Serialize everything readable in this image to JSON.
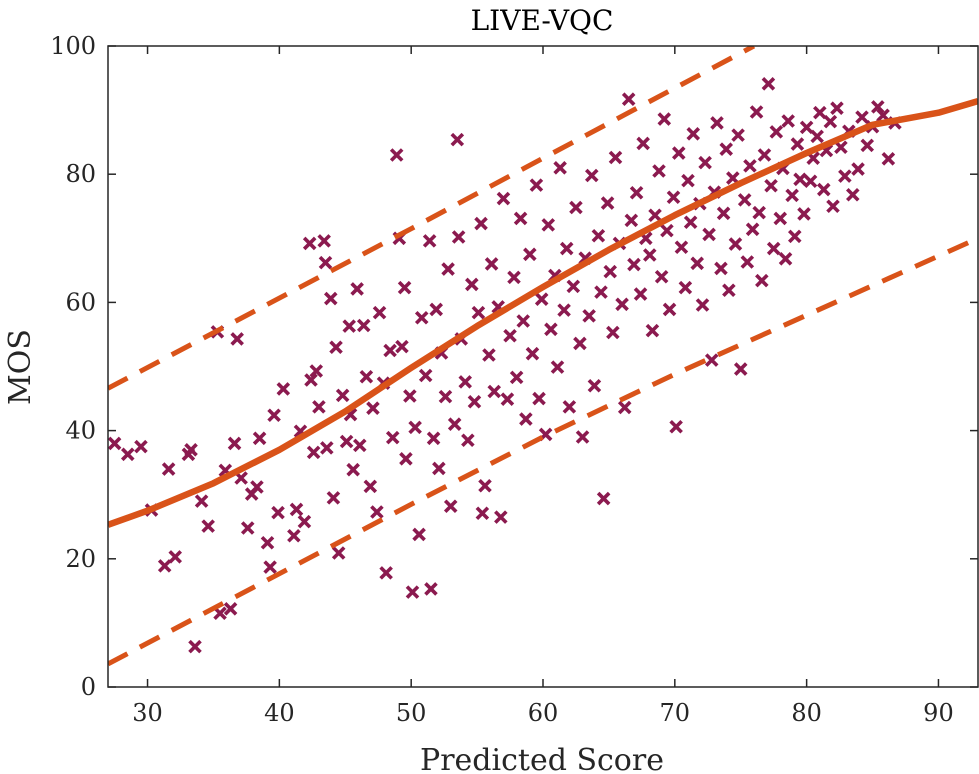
{
  "chart_data": {
    "type": "scatter",
    "title": "LIVE-VQC",
    "xlabel": "Predicted Score",
    "ylabel": "MOS",
    "xlim": [
      27,
      93
    ],
    "ylim": [
      0,
      100
    ],
    "xticks": [
      30,
      40,
      50,
      60,
      70,
      80,
      90
    ],
    "yticks": [
      0,
      20,
      40,
      60,
      80,
      100
    ],
    "grid": false,
    "colors": {
      "points": "#8b1a4f",
      "fit": "#d95319"
    },
    "marker": "x",
    "points": [
      [
        27.5,
        38.0
      ],
      [
        28.5,
        36.3
      ],
      [
        29.5,
        37.5
      ],
      [
        30.3,
        27.6
      ],
      [
        31.3,
        18.9
      ],
      [
        31.6,
        34.0
      ],
      [
        32.1,
        20.3
      ],
      [
        33.1,
        36.3
      ],
      [
        33.3,
        37.0
      ],
      [
        33.6,
        6.3
      ],
      [
        34.1,
        29.0
      ],
      [
        34.6,
        25.1
      ],
      [
        35.3,
        55.4
      ],
      [
        35.5,
        11.5
      ],
      [
        35.9,
        33.8
      ],
      [
        36.3,
        12.2
      ],
      [
        36.6,
        38.0
      ],
      [
        36.8,
        54.3
      ],
      [
        37.1,
        32.6
      ],
      [
        37.6,
        24.8
      ],
      [
        37.9,
        30.1
      ],
      [
        38.3,
        31.2
      ],
      [
        38.5,
        38.8
      ],
      [
        39.1,
        22.5
      ],
      [
        39.3,
        18.7
      ],
      [
        39.6,
        42.4
      ],
      [
        39.9,
        27.2
      ],
      [
        40.3,
        46.5
      ],
      [
        41.1,
        23.6
      ],
      [
        41.3,
        27.7
      ],
      [
        41.6,
        39.9
      ],
      [
        41.9,
        25.8
      ],
      [
        42.3,
        69.2
      ],
      [
        42.4,
        47.9
      ],
      [
        42.6,
        36.6
      ],
      [
        42.8,
        49.3
      ],
      [
        43.0,
        43.7
      ],
      [
        43.4,
        69.6
      ],
      [
        43.5,
        66.2
      ],
      [
        43.6,
        37.3
      ],
      [
        43.9,
        60.6
      ],
      [
        44.1,
        29.5
      ],
      [
        44.3,
        53.0
      ],
      [
        44.5,
        20.9
      ],
      [
        44.8,
        45.5
      ],
      [
        45.1,
        38.3
      ],
      [
        45.3,
        56.3
      ],
      [
        45.4,
        42.5
      ],
      [
        45.6,
        33.9
      ],
      [
        45.9,
        62.1
      ],
      [
        46.1,
        37.7
      ],
      [
        46.4,
        56.4
      ],
      [
        46.6,
        48.4
      ],
      [
        46.9,
        31.3
      ],
      [
        47.1,
        43.5
      ],
      [
        47.4,
        27.3
      ],
      [
        47.6,
        58.4
      ],
      [
        47.9,
        47.4
      ],
      [
        48.1,
        17.8
      ],
      [
        48.4,
        52.5
      ],
      [
        48.6,
        38.9
      ],
      [
        48.9,
        83.0
      ],
      [
        49.1,
        70.0
      ],
      [
        49.3,
        53.1
      ],
      [
        49.5,
        62.3
      ],
      [
        49.6,
        35.6
      ],
      [
        49.9,
        45.4
      ],
      [
        50.1,
        14.8
      ],
      [
        50.3,
        40.5
      ],
      [
        50.6,
        23.8
      ],
      [
        50.8,
        57.6
      ],
      [
        51.1,
        48.6
      ],
      [
        51.4,
        69.6
      ],
      [
        51.5,
        15.3
      ],
      [
        51.7,
        38.8
      ],
      [
        51.9,
        58.9
      ],
      [
        52.1,
        34.1
      ],
      [
        52.3,
        52.1
      ],
      [
        52.6,
        45.3
      ],
      [
        52.8,
        65.2
      ],
      [
        53.0,
        28.2
      ],
      [
        53.3,
        41.0
      ],
      [
        53.5,
        85.4
      ],
      [
        53.6,
        70.2
      ],
      [
        53.8,
        54.3
      ],
      [
        54.1,
        47.6
      ],
      [
        54.3,
        38.5
      ],
      [
        54.6,
        62.8
      ],
      [
        54.8,
        44.5
      ],
      [
        55.1,
        58.4
      ],
      [
        55.3,
        72.3
      ],
      [
        55.4,
        27.1
      ],
      [
        55.6,
        31.4
      ],
      [
        55.9,
        51.8
      ],
      [
        56.1,
        66.0
      ],
      [
        56.3,
        46.1
      ],
      [
        56.6,
        59.3
      ],
      [
        56.8,
        26.5
      ],
      [
        57.0,
        76.2
      ],
      [
        57.3,
        44.9
      ],
      [
        57.5,
        54.8
      ],
      [
        57.8,
        63.9
      ],
      [
        58.0,
        48.3
      ],
      [
        58.3,
        73.1
      ],
      [
        58.5,
        57.1
      ],
      [
        58.7,
        41.8
      ],
      [
        59.0,
        67.5
      ],
      [
        59.2,
        52.0
      ],
      [
        59.5,
        78.3
      ],
      [
        59.7,
        45.0
      ],
      [
        59.9,
        60.5
      ],
      [
        60.2,
        39.4
      ],
      [
        60.4,
        72.1
      ],
      [
        60.6,
        55.8
      ],
      [
        60.9,
        64.2
      ],
      [
        61.1,
        49.9
      ],
      [
        61.3,
        81.0
      ],
      [
        61.6,
        58.8
      ],
      [
        61.8,
        68.4
      ],
      [
        62.0,
        43.7
      ],
      [
        62.3,
        62.5
      ],
      [
        62.5,
        74.8
      ],
      [
        62.8,
        53.6
      ],
      [
        63.0,
        39.0
      ],
      [
        63.2,
        66.9
      ],
      [
        63.5,
        57.9
      ],
      [
        63.7,
        79.8
      ],
      [
        63.9,
        47.0
      ],
      [
        64.2,
        70.4
      ],
      [
        64.4,
        61.6
      ],
      [
        64.6,
        29.4
      ],
      [
        64.9,
        75.5
      ],
      [
        65.1,
        64.8
      ],
      [
        65.3,
        55.3
      ],
      [
        65.5,
        82.6
      ],
      [
        65.8,
        69.2
      ],
      [
        66.0,
        59.7
      ],
      [
        66.2,
        43.6
      ],
      [
        66.5,
        91.7
      ],
      [
        66.7,
        72.8
      ],
      [
        66.9,
        65.9
      ],
      [
        67.1,
        77.1
      ],
      [
        67.4,
        61.3
      ],
      [
        67.6,
        84.8
      ],
      [
        67.8,
        70.0
      ],
      [
        68.1,
        67.4
      ],
      [
        68.3,
        55.6
      ],
      [
        68.5,
        73.6
      ],
      [
        68.8,
        80.5
      ],
      [
        69.0,
        64.0
      ],
      [
        69.2,
        88.6
      ],
      [
        69.4,
        71.2
      ],
      [
        69.6,
        58.9
      ],
      [
        69.9,
        76.4
      ],
      [
        70.1,
        40.6
      ],
      [
        70.3,
        83.3
      ],
      [
        70.5,
        68.6
      ],
      [
        70.8,
        62.3
      ],
      [
        71.0,
        79.0
      ],
      [
        71.2,
        72.5
      ],
      [
        71.4,
        86.3
      ],
      [
        71.7,
        66.1
      ],
      [
        71.9,
        75.4
      ],
      [
        72.1,
        59.6
      ],
      [
        72.3,
        81.8
      ],
      [
        72.6,
        70.6
      ],
      [
        72.8,
        51.0
      ],
      [
        73.0,
        77.2
      ],
      [
        73.2,
        88.0
      ],
      [
        73.5,
        65.3
      ],
      [
        73.7,
        73.9
      ],
      [
        73.9,
        83.9
      ],
      [
        74.1,
        61.9
      ],
      [
        74.4,
        79.4
      ],
      [
        74.6,
        69.1
      ],
      [
        74.8,
        86.1
      ],
      [
        75.0,
        49.6
      ],
      [
        75.3,
        76.0
      ],
      [
        75.5,
        66.3
      ],
      [
        75.7,
        81.3
      ],
      [
        75.9,
        71.4
      ],
      [
        76.2,
        89.7
      ],
      [
        76.4,
        74.0
      ],
      [
        76.6,
        63.4
      ],
      [
        76.8,
        83.0
      ],
      [
        77.1,
        94.1
      ],
      [
        77.3,
        78.2
      ],
      [
        77.5,
        68.4
      ],
      [
        77.7,
        86.6
      ],
      [
        78.0,
        73.1
      ],
      [
        78.2,
        80.9
      ],
      [
        78.4,
        66.8
      ],
      [
        78.6,
        88.3
      ],
      [
        78.9,
        76.7
      ],
      [
        79.1,
        70.3
      ],
      [
        79.3,
        84.7
      ],
      [
        79.5,
        79.2
      ],
      [
        79.8,
        73.8
      ],
      [
        80.0,
        87.3
      ],
      [
        80.3,
        78.9
      ],
      [
        80.5,
        82.5
      ],
      [
        80.8,
        85.9
      ],
      [
        81.0,
        89.6
      ],
      [
        81.3,
        77.6
      ],
      [
        81.5,
        83.7
      ],
      [
        81.8,
        88.2
      ],
      [
        82.0,
        75.0
      ],
      [
        82.3,
        90.3
      ],
      [
        82.6,
        84.2
      ],
      [
        82.9,
        79.7
      ],
      [
        83.2,
        86.7
      ],
      [
        83.5,
        76.8
      ],
      [
        83.9,
        80.8
      ],
      [
        84.2,
        88.9
      ],
      [
        84.6,
        84.5
      ],
      [
        85.0,
        87.4
      ],
      [
        85.4,
        90.5
      ],
      [
        85.8,
        89.2
      ],
      [
        86.2,
        82.4
      ],
      [
        86.7,
        88.0
      ]
    ],
    "fit_curve": [
      [
        27,
        25.3
      ],
      [
        30,
        27.5
      ],
      [
        35,
        31.8
      ],
      [
        40,
        37.0
      ],
      [
        45,
        43.0
      ],
      [
        50,
        49.8
      ],
      [
        55,
        56.3
      ],
      [
        60,
        62.4
      ],
      [
        65,
        68.2
      ],
      [
        70,
        73.6
      ],
      [
        75,
        78.6
      ],
      [
        80,
        83.3
      ],
      [
        85,
        87.7
      ],
      [
        90,
        89.6
      ],
      [
        93,
        91.4
      ]
    ],
    "band_upper": [
      [
        27,
        46.6
      ],
      [
        50,
        71.5
      ],
      [
        60,
        82.5
      ],
      [
        76,
        100.0
      ]
    ],
    "band_lower": [
      [
        27,
        3.6
      ],
      [
        50,
        28.5
      ],
      [
        60,
        39.0
      ],
      [
        70,
        48.8
      ],
      [
        80,
        58.0
      ],
      [
        93,
        70.0
      ]
    ]
  }
}
